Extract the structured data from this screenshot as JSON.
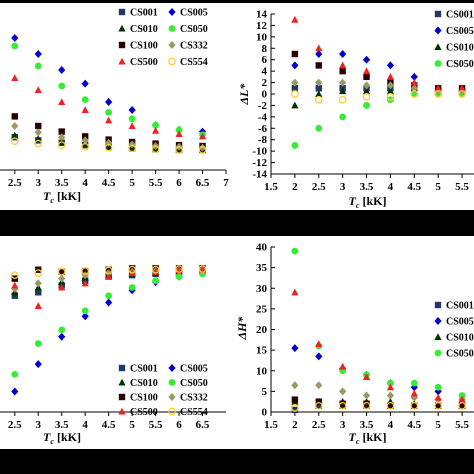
{
  "markers": {
    "CS001": {
      "shape": "square",
      "color": "#1f3864"
    },
    "CS005": {
      "shape": "diamond",
      "color": "#0000cc"
    },
    "CS010": {
      "shape": "triangle",
      "color": "#003300"
    },
    "CS050": {
      "shape": "circle",
      "color": "#33ee33"
    },
    "CS100": {
      "shape": "square",
      "color": "#2b0000"
    },
    "CS332": {
      "shape": "diamond",
      "color": "#999966"
    },
    "CS500": {
      "shape": "triangle",
      "color": "#ee2222"
    },
    "CS554": {
      "shape": "circle-open",
      "color": "#ffcc33"
    }
  },
  "legend_labels": [
    "CS001",
    "CS005",
    "CS010",
    "CS050",
    "CS100",
    "CS332",
    "CS500",
    "CS554"
  ],
  "chart_data": [
    {
      "type": "scatter",
      "title": "",
      "xlabel": "Tc [kK]",
      "ylabel": "",
      "xlim": [
        2.1,
        7
      ],
      "x_ticks": [
        "2.5",
        "3",
        "3.5",
        "4",
        "4.5",
        "5",
        "5.5",
        "6",
        "6.5",
        "7"
      ],
      "legend": "top-right",
      "legend_columns": 2,
      "series": [
        {
          "name": "CS001",
          "x": [
            2.5,
            3,
            3.5,
            4,
            4.5,
            5,
            5.5,
            6,
            6.5
          ],
          "y": [
            4.1,
            3.7,
            3.4,
            3.1,
            2.9,
            2.7,
            2.6,
            2.5,
            2.5
          ]
        },
        {
          "name": "CS005",
          "x": [
            2.5,
            3,
            3.5,
            4,
            4.5,
            5,
            5.5,
            6,
            6.5
          ],
          "y": [
            16.5,
            14.5,
            12.5,
            10.8,
            8.5,
            7.5,
            5.6,
            5.0,
            4.8
          ]
        },
        {
          "name": "CS010",
          "x": [
            2.5,
            3,
            3.5,
            4,
            4.5,
            5,
            5.5,
            6,
            6.5
          ],
          "y": [
            4.3,
            3.9,
            3.5,
            3.2,
            3.0,
            2.8,
            2.7,
            2.6,
            2.5
          ]
        },
        {
          "name": "CS050",
          "x": [
            2.5,
            3,
            3.5,
            4,
            4.5,
            5,
            5.5,
            6,
            6.5
          ],
          "y": [
            15.5,
            13.0,
            10.5,
            8.8,
            7.2,
            6.4,
            5.6,
            5.0,
            4.4
          ]
        },
        {
          "name": "CS100",
          "x": [
            2.5,
            3,
            3.5,
            4,
            4.5,
            5,
            5.5,
            6,
            6.5
          ],
          "y": [
            6.7,
            5.5,
            4.8,
            4.2,
            3.8,
            3.5,
            3.3,
            3.1,
            3.0
          ]
        },
        {
          "name": "CS332",
          "x": [
            2.5,
            3,
            3.5,
            4,
            4.5,
            5,
            5.5,
            6,
            6.5
          ],
          "y": [
            5.5,
            4.7,
            4.1,
            3.7,
            3.4,
            3.2,
            3.0,
            2.9,
            2.8
          ]
        },
        {
          "name": "CS500",
          "x": [
            2.5,
            3,
            3.5,
            4,
            4.5,
            5,
            5.5,
            6,
            6.5
          ],
          "y": [
            11.5,
            10.0,
            8.5,
            7.5,
            6.2,
            5.5,
            4.9,
            4.5,
            4.2
          ]
        },
        {
          "name": "CS554",
          "x": [
            2.5,
            3,
            3.5,
            4,
            4.5,
            5,
            5.5,
            6,
            6.5
          ],
          "y": [
            3.6,
            3.3,
            3.1,
            2.9,
            2.8,
            2.7,
            2.6,
            2.5,
            2.5
          ]
        }
      ]
    },
    {
      "type": "scatter",
      "title": "",
      "xlabel": "Tc [kK]",
      "ylabel": "ΔL*",
      "xlim": [
        1.5,
        5.75
      ],
      "ylim": [
        -14,
        14
      ],
      "x_ticks": [
        "1.5",
        "2",
        "2.5",
        "3",
        "3.5",
        "4",
        "4.5",
        "5",
        "5.5"
      ],
      "y_ticks": [
        "-14",
        "-12",
        "-10",
        "-8",
        "-6",
        "-4",
        "-2",
        "0",
        "2",
        "4",
        "6",
        "8",
        "10",
        "12",
        "14"
      ],
      "legend": "top-right",
      "series": [
        {
          "name": "CS001",
          "x": [
            2,
            2.5,
            3,
            3.5,
            4,
            4.5,
            5,
            5.5
          ],
          "y": [
            1,
            1,
            1,
            1,
            1,
            1,
            0.5,
            0.5
          ]
        },
        {
          "name": "CS005",
          "x": [
            2,
            2.5,
            3,
            3.5,
            4,
            4.5,
            5,
            5.5
          ],
          "y": [
            5,
            7,
            7,
            6,
            5,
            3,
            1,
            0.5
          ]
        },
        {
          "name": "CS010",
          "x": [
            2,
            2.5,
            3,
            3.5,
            4,
            4.5,
            5,
            5.5
          ],
          "y": [
            -2,
            0,
            0.5,
            0.5,
            0.5,
            0.5,
            0.5,
            0.5
          ]
        },
        {
          "name": "CS050",
          "x": [
            2,
            2.5,
            3,
            3.5,
            4,
            4.5,
            5,
            5.5
          ],
          "y": [
            -9,
            -6,
            -4,
            -2,
            -1,
            0,
            0,
            0
          ]
        },
        {
          "name": "CS100",
          "x": [
            2,
            2.5,
            3,
            3.5,
            4,
            4.5,
            5,
            5.5
          ],
          "y": [
            7,
            5,
            4,
            3,
            2,
            1.5,
            1,
            1
          ]
        },
        {
          "name": "CS332",
          "x": [
            2,
            2.5,
            3,
            3.5,
            4,
            4.5,
            5,
            5.5
          ],
          "y": [
            2,
            2,
            2,
            1.5,
            1.5,
            1,
            0.5,
            0.5
          ]
        },
        {
          "name": "CS500",
          "x": [
            2,
            2.5,
            3,
            3.5,
            4,
            4.5,
            5,
            5.5
          ],
          "y": [
            13,
            8,
            5,
            4,
            3,
            2,
            1,
            1
          ]
        },
        {
          "name": "CS554",
          "x": [
            2,
            2.5,
            3,
            3.5,
            4,
            4.5,
            5,
            5.5
          ],
          "y": [
            0,
            -1,
            -1,
            -0.5,
            -0.5,
            0,
            0,
            0
          ]
        }
      ]
    },
    {
      "type": "scatter",
      "title": "",
      "xlabel": "Tc [kK]",
      "ylabel": "",
      "xlim": [
        2.1,
        7
      ],
      "x_ticks": [
        "2.5",
        "3",
        "3.5",
        "4",
        "4.5",
        "5",
        "5.5",
        "6",
        "6.5"
      ],
      "legend": "bottom-right",
      "legend_columns": 2,
      "series": [
        {
          "name": "CS001",
          "x": [
            2.5,
            3,
            3.5,
            4,
            4.5,
            5,
            5.5,
            6,
            6.5
          ],
          "y": [
            12,
            12.5,
            13.5,
            14.2,
            14.8,
            15,
            15.2,
            15.4,
            15.6
          ]
        },
        {
          "name": "CS005",
          "x": [
            2.5,
            3,
            3.5,
            4,
            4.5,
            5,
            5.5,
            6,
            6.5
          ],
          "y": [
            -2,
            2,
            6,
            9,
            11,
            12.8,
            14,
            14.8,
            15.3
          ]
        },
        {
          "name": "CS010",
          "x": [
            2.5,
            3,
            3.5,
            4,
            4.5,
            5,
            5.5,
            6,
            6.5
          ],
          "y": [
            12.5,
            13.2,
            14,
            14.6,
            15,
            15.2,
            15.4,
            15.6,
            15.7
          ]
        },
        {
          "name": "CS050",
          "x": [
            2.5,
            3,
            3.5,
            4,
            4.5,
            5,
            5.5,
            6,
            6.5
          ],
          "y": [
            0.5,
            5,
            7,
            9.8,
            12,
            13.2,
            14.2,
            14.8,
            15.2
          ]
        },
        {
          "name": "CS100",
          "x": [
            2.5,
            3,
            3.5,
            4,
            4.5,
            5,
            5.5,
            6,
            6.5
          ],
          "y": [
            14.5,
            15.8,
            15.5,
            15.6,
            15.8,
            16,
            16,
            16,
            16
          ]
        },
        {
          "name": "CS332",
          "x": [
            2.5,
            3,
            3.5,
            4,
            4.5,
            5,
            5.5,
            6,
            6.5
          ],
          "y": [
            13,
            13.8,
            14.5,
            15,
            15.3,
            15.5,
            15.6,
            15.7,
            15.8
          ]
        },
        {
          "name": "CS500",
          "x": [
            2.5,
            3,
            3.5,
            4,
            4.5,
            5,
            5.5,
            6,
            6.5
          ],
          "y": [
            13.5,
            10.5,
            13.2,
            13.8,
            14.8,
            15.3,
            15.5,
            15.7,
            15.8
          ]
        },
        {
          "name": "CS554",
          "x": [
            2.5,
            3,
            3.5,
            4,
            4.5,
            5,
            5.5,
            6,
            6.5
          ],
          "y": [
            15,
            15.3,
            15.5,
            15.6,
            15.7,
            15.8,
            15.8,
            15.9,
            15.9
          ]
        }
      ]
    },
    {
      "type": "scatter",
      "title": "",
      "xlabel": "Tc [kK]",
      "ylabel": "ΔH*",
      "xlim": [
        1.5,
        5.75
      ],
      "ylim": [
        0,
        40
      ],
      "x_ticks": [
        "1.5",
        "2",
        "2.5",
        "3",
        "3.5",
        "4",
        "4.5",
        "5",
        "5.5"
      ],
      "y_ticks": [
        "0",
        "5",
        "10",
        "15",
        "20",
        "25",
        "30",
        "35",
        "40"
      ],
      "legend": "top-right",
      "series": [
        {
          "name": "CS001",
          "x": [
            2,
            2.5,
            3,
            3.5,
            4,
            4.5,
            5,
            5.5
          ],
          "y": [
            0.5,
            1.5,
            1.5,
            1.5,
            1.5,
            1.5,
            1.5,
            1.5
          ]
        },
        {
          "name": "CS005",
          "x": [
            2,
            2.5,
            3,
            3.5,
            4,
            4.5,
            5,
            5.5
          ],
          "y": [
            15.5,
            13.5,
            10.5,
            9,
            7,
            6,
            5,
            3
          ]
        },
        {
          "name": "CS010",
          "x": [
            2,
            2.5,
            3,
            3.5,
            4,
            4.5,
            5,
            5.5
          ],
          "y": [
            2.5,
            2.5,
            2.5,
            2.5,
            2.5,
            2,
            1.5,
            1.5
          ]
        },
        {
          "name": "CS050",
          "x": [
            2,
            2.5,
            3,
            3.5,
            4,
            4.5,
            5,
            5.5
          ],
          "y": [
            39,
            16,
            10,
            9,
            7,
            7,
            6,
            4
          ]
        },
        {
          "name": "CS100",
          "x": [
            2,
            2.5,
            3,
            3.5,
            4,
            4.5,
            5,
            5.5
          ],
          "y": [
            3,
            2.5,
            2,
            2,
            1.5,
            1.5,
            1.5,
            1.5
          ]
        },
        {
          "name": "CS332",
          "x": [
            2,
            2.5,
            3,
            3.5,
            4,
            4.5,
            5,
            5.5
          ],
          "y": [
            6.5,
            6.5,
            5,
            4,
            4,
            3.5,
            3,
            3
          ]
        },
        {
          "name": "CS500",
          "x": [
            2,
            2.5,
            3,
            3.5,
            4,
            4.5,
            5,
            5.5
          ],
          "y": [
            29,
            16.5,
            11,
            8.5,
            6,
            4.5,
            3.5,
            3
          ]
        },
        {
          "name": "CS554",
          "x": [
            2,
            2.5,
            3,
            3.5,
            4,
            4.5,
            5,
            5.5
          ],
          "y": [
            1,
            1.5,
            1.5,
            1.5,
            1.5,
            1.5,
            1.5,
            1.5
          ]
        }
      ]
    }
  ]
}
